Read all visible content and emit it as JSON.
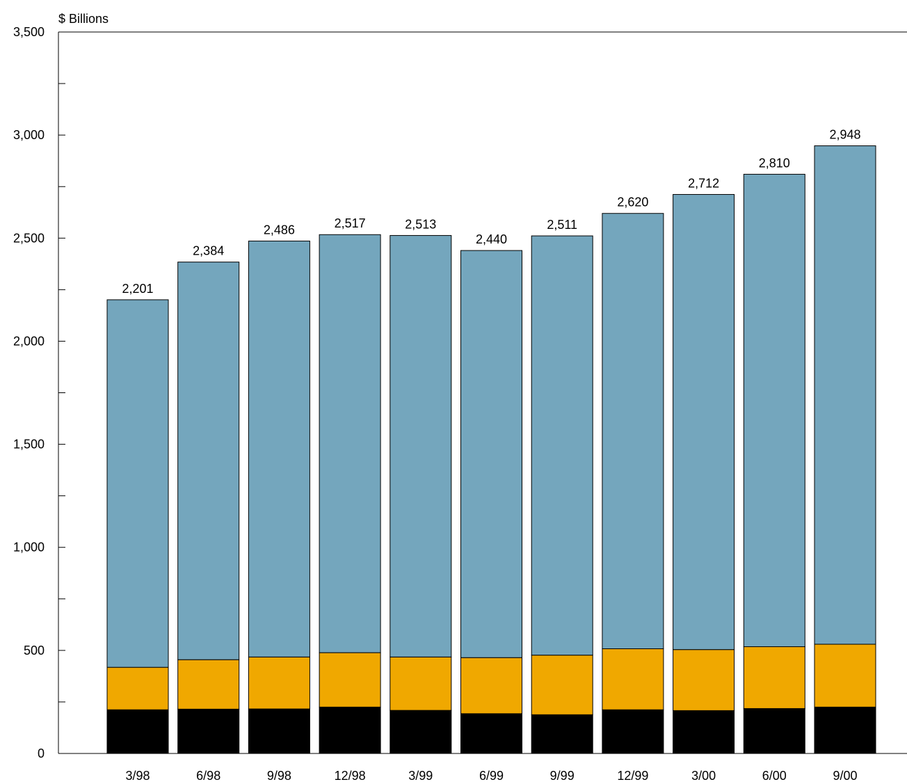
{
  "chart_data": {
    "type": "bar",
    "stacked": true,
    "ylabel": "$ Billions",
    "ylim": [
      0,
      3500
    ],
    "yticks": [
      0,
      500,
      1000,
      1500,
      2000,
      2500,
      3000,
      3500
    ],
    "ytick_labels": [
      "0",
      "500",
      "1,000",
      "1,500",
      "2,000",
      "2,500",
      "3,000",
      "3,500"
    ],
    "categories": [
      "3/98",
      "6/98",
      "9/98",
      "12/98",
      "3/99",
      "6/99",
      "9/99",
      "12/99",
      "3/00",
      "6/00",
      "9/00"
    ],
    "series": [
      {
        "values": [
          212,
          215,
          216,
          225,
          209,
          193,
          188,
          212,
          208,
          218,
          225
        ],
        "color": "#000000"
      },
      {
        "values": [
          206,
          240,
          252,
          264,
          259,
          272,
          289,
          296,
          296,
          300,
          305
        ],
        "color": "#f0a800"
      },
      {
        "values": [
          1783,
          1929,
          2018,
          2028,
          2045,
          1975,
          2034,
          2112,
          2208,
          2292,
          2418
        ],
        "color": "#74a6bd"
      }
    ],
    "totals": [
      2201,
      2384,
      2486,
      2517,
      2513,
      2440,
      2511,
      2620,
      2712,
      2810,
      2948
    ],
    "total_labels": [
      "2,201",
      "2,384",
      "2,486",
      "2,517",
      "2,513",
      "2,440",
      "2,511",
      "2,620",
      "2,712",
      "2,810",
      "2,948"
    ],
    "grid": false,
    "legend": "none"
  }
}
